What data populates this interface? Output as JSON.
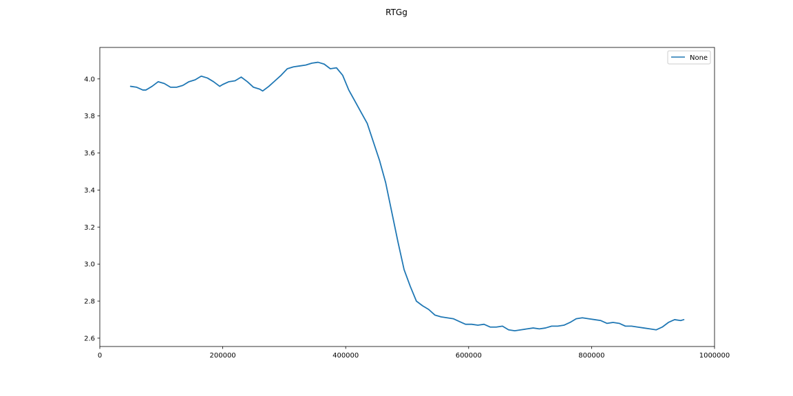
{
  "chart_data": {
    "type": "line",
    "title": "RTGg",
    "xlabel": "",
    "ylabel": "",
    "xlim": [
      0,
      1000000
    ],
    "ylim": [
      2.555,
      4.17
    ],
    "xticks": [
      0,
      200000,
      400000,
      600000,
      800000,
      1000000
    ],
    "xtick_labels": [
      "0",
      "200000",
      "400000",
      "600000",
      "800000",
      "1000000"
    ],
    "yticks": [
      2.6,
      2.8,
      3.0,
      3.2,
      3.4,
      3.6,
      3.8,
      4.0
    ],
    "ytick_labels": [
      "2.6",
      "2.8",
      "3.0",
      "3.2",
      "3.4",
      "3.6",
      "3.8",
      "4.0"
    ],
    "grid": false,
    "legend": {
      "placement": "top-right",
      "entries": [
        "None"
      ]
    },
    "series": [
      {
        "name": "None",
        "color": "#1f77b4",
        "x": [
          50000,
          60000,
          70000,
          75000,
          85000,
          95000,
          105000,
          115000,
          125000,
          135000,
          145000,
          155000,
          165000,
          175000,
          185000,
          195000,
          200000,
          210000,
          220000,
          230000,
          240000,
          250000,
          260000,
          265000,
          275000,
          285000,
          295000,
          305000,
          315000,
          325000,
          335000,
          345000,
          355000,
          365000,
          375000,
          385000,
          395000,
          405000,
          415000,
          425000,
          435000,
          445000,
          455000,
          465000,
          475000,
          485000,
          495000,
          505000,
          515000,
          525000,
          535000,
          545000,
          555000,
          565000,
          575000,
          585000,
          595000,
          605000,
          615000,
          625000,
          635000,
          645000,
          655000,
          665000,
          675000,
          685000,
          695000,
          705000,
          715000,
          725000,
          735000,
          745000,
          755000,
          765000,
          775000,
          785000,
          795000,
          805000,
          815000,
          825000,
          835000,
          845000,
          855000,
          865000,
          875000,
          885000,
          895000,
          905000,
          915000,
          925000,
          935000,
          945000,
          950000
        ],
        "values": [
          3.96,
          3.955,
          3.94,
          3.94,
          3.96,
          3.985,
          3.975,
          3.955,
          3.955,
          3.965,
          3.985,
          3.995,
          4.015,
          4.005,
          3.985,
          3.96,
          3.97,
          3.985,
          3.99,
          4.01,
          3.985,
          3.955,
          3.945,
          3.935,
          3.96,
          3.99,
          4.02,
          4.055,
          4.065,
          4.07,
          4.075,
          4.085,
          4.09,
          4.08,
          4.055,
          4.06,
          4.02,
          3.94,
          3.88,
          3.82,
          3.76,
          3.66,
          3.56,
          3.44,
          3.28,
          3.12,
          2.97,
          2.88,
          2.8,
          2.775,
          2.755,
          2.725,
          2.715,
          2.71,
          2.705,
          2.69,
          2.675,
          2.675,
          2.67,
          2.675,
          2.66,
          2.66,
          2.665,
          2.645,
          2.64,
          2.645,
          2.65,
          2.655,
          2.65,
          2.655,
          2.665,
          2.665,
          2.67,
          2.685,
          2.705,
          2.71,
          2.705,
          2.7,
          2.695,
          2.68,
          2.685,
          2.68,
          2.665,
          2.665,
          2.66,
          2.655,
          2.65,
          2.645,
          2.66,
          2.685,
          2.7,
          2.695,
          2.7
        ]
      }
    ]
  }
}
